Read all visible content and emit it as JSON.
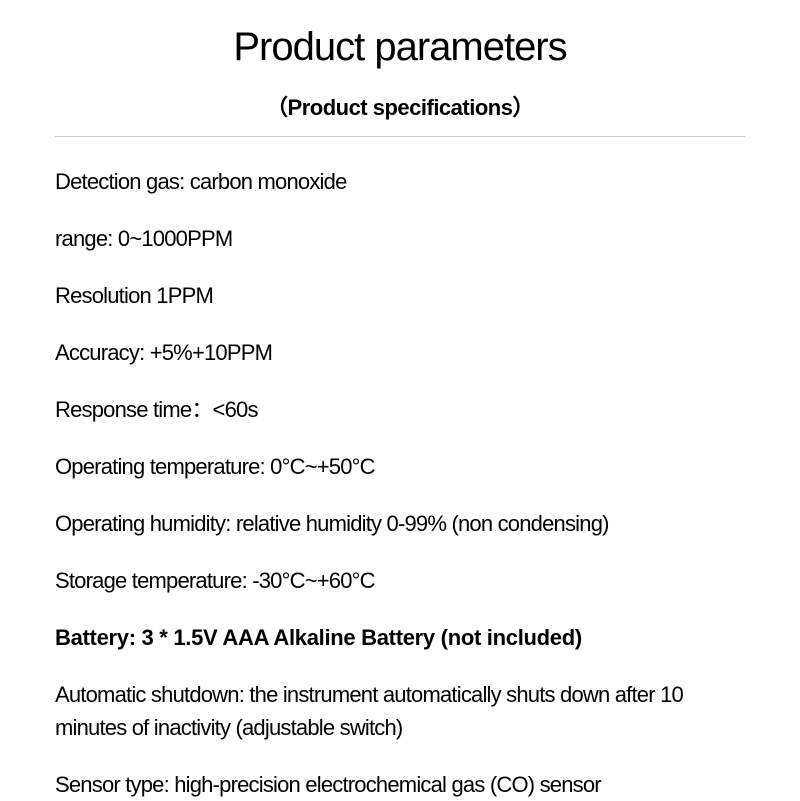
{
  "header": {
    "title": "Product parameters",
    "subtitle": "（Product specifications）"
  },
  "specs": [
    {
      "text": "Detection gas: carbon monoxide",
      "bold": false
    },
    {
      "text": "range: 0~1000PPM",
      "bold": false
    },
    {
      "text": "Resolution 1PPM",
      "bold": false
    },
    {
      "text": "Accuracy: +5%+10PPM",
      "bold": false
    },
    {
      "text": "Response time：<60s",
      "bold": false
    },
    {
      "text": "Operating temperature: 0°C~+50°C",
      "bold": false
    },
    {
      "text": "Operating humidity: relative humidity 0-99% (non condensing)",
      "bold": false
    },
    {
      "text": "Storage temperature: -30°C~+60°C",
      "bold": false
    },
    {
      "text": "Battery: 3 * 1.5V AAA Alkaline Battery (not included)",
      "bold": true
    },
    {
      "text": "Automatic shutdown: the instrument automatically shuts down after 10 minutes of inactivity (adjustable switch)",
      "bold": false
    },
    {
      "text": "Sensor type: high-precision electrochemical gas (CO) sensor",
      "bold": false
    }
  ],
  "styles": {
    "background_color": "#ffffff",
    "text_color": "#000000",
    "divider_color": "#cccccc",
    "title_fontsize": 40,
    "subtitle_fontsize": 22,
    "spec_fontsize": 22
  }
}
